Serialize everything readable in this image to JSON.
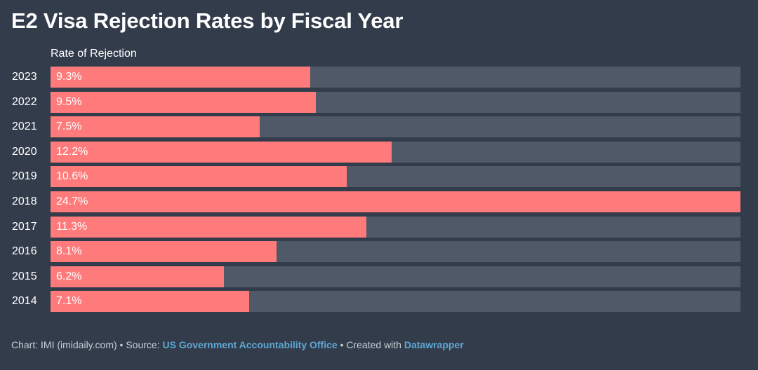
{
  "title": "E2 Visa Rejection Rates by Fiscal Year",
  "colors": {
    "background": "#333c4b",
    "bar": "#ff7b7b",
    "track": "#4f5968",
    "link": "#5fa8d3"
  },
  "footer": {
    "chart_credit": "Chart: IMI (imidaily.com)",
    "sep1": " • ",
    "source_prefix": "Source: ",
    "source_link": "US Government Accountability Office",
    "sep2": " • ",
    "created_prefix": "Created with ",
    "tool_link": "Datawrapper"
  },
  "chart_data": {
    "type": "bar",
    "orientation": "horizontal",
    "title": "E2 Visa Rejection Rates by Fiscal Year",
    "column_header": "Rate of Rejection",
    "xlim": [
      0,
      24.7
    ],
    "categories": [
      "2023",
      "2022",
      "2021",
      "2020",
      "2019",
      "2018",
      "2017",
      "2016",
      "2015",
      "2014"
    ],
    "values": [
      9.3,
      9.5,
      7.5,
      12.2,
      10.6,
      24.7,
      11.3,
      8.1,
      6.2,
      7.1
    ],
    "value_labels": [
      "9.3%",
      "9.5%",
      "7.5%",
      "12.2%",
      "10.6%",
      "24.7%",
      "11.3%",
      "8.1%",
      "6.2%",
      "7.1%"
    ]
  }
}
